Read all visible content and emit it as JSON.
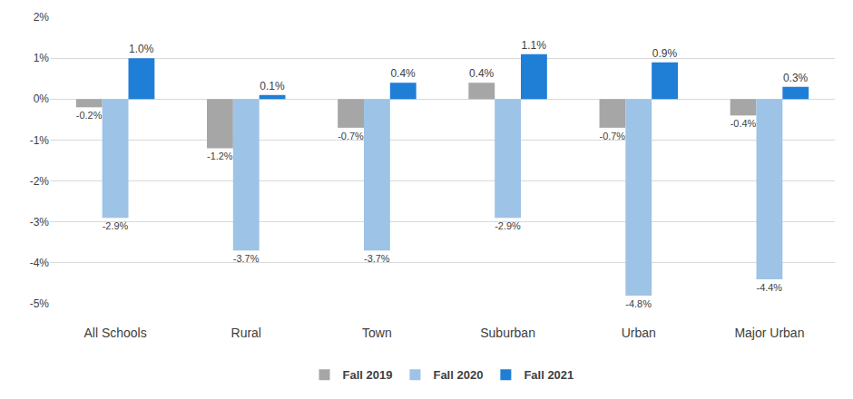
{
  "chart_data": {
    "type": "bar",
    "categories": [
      "All Schools",
      "Rural",
      "Town",
      "Suburban",
      "Urban",
      "Major Urban"
    ],
    "series": [
      {
        "name": "Fall 2019",
        "color": "#a6a6a6",
        "values": [
          -0.2,
          -1.2,
          -0.7,
          0.4,
          -0.7,
          -0.4
        ],
        "value_labels": [
          "-0.2%",
          "-1.2%",
          "-0.7%",
          "0.4%",
          "-0.7%",
          "-0.4%"
        ]
      },
      {
        "name": "Fall 2020",
        "color": "#9dc3e6",
        "values": [
          -2.9,
          -3.7,
          -3.7,
          -2.9,
          -4.8,
          -4.4
        ],
        "value_labels": [
          "-2.9%",
          "-3.7%",
          "-3.7%",
          "-2.9%",
          "-4.8%",
          "-4.4%"
        ]
      },
      {
        "name": "Fall 2021",
        "color": "#1f7fd6",
        "values": [
          1.0,
          0.1,
          0.4,
          1.1,
          0.9,
          0.3
        ],
        "value_labels": [
          "1.0%",
          "0.1%",
          "0.4%",
          "1.1%",
          "0.9%",
          "0.3%"
        ]
      }
    ],
    "ylim": [
      -5,
      2
    ],
    "yticks": [
      {
        "value": -5,
        "label": "-5%"
      },
      {
        "value": -4,
        "label": "-4%"
      },
      {
        "value": -3,
        "label": "-3%"
      },
      {
        "value": -2,
        "label": "-2%"
      },
      {
        "value": -1,
        "label": "-1%"
      },
      {
        "value": 0,
        "label": "0%"
      },
      {
        "value": 1,
        "label": "1%"
      },
      {
        "value": 2,
        "label": "2%"
      }
    ],
    "grid": true,
    "legend": "bottom",
    "data_labels": true
  }
}
